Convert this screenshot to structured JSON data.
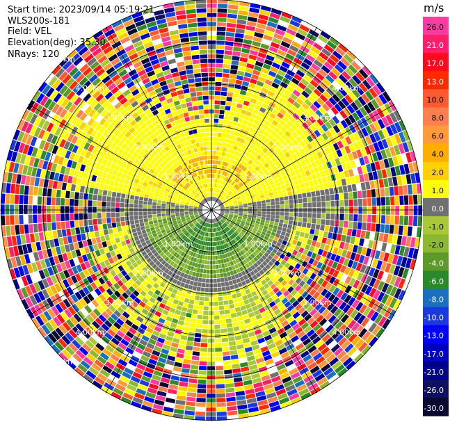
{
  "header": {
    "start_time": "Start time: 2023/09/14 05:19:21",
    "instrument": "WLS200s-181",
    "field": "Field: VEL",
    "elevation": "Elevation(deg): 35.30",
    "nrays": "NRays: 120"
  },
  "chart_data": {
    "type": "heatmap",
    "projection": "polar PPI",
    "field": "VEL",
    "nrays": 120,
    "elevation_deg": 35.3,
    "range_ring_labels": [
      "1.00km",
      "2.00km",
      "3.00km",
      "4.00km",
      "5.00km"
    ],
    "max_range_km": 6.5,
    "colorbar": {
      "units": "m/s",
      "tick_labels": [
        "26.0",
        "21.0",
        "17.0",
        "13.0",
        "10.0",
        "8.0",
        "6.0",
        "4.0",
        "2.0",
        "1.0",
        "0.0",
        "-1.0",
        "-2.0",
        "-4.0",
        "-6.0",
        "-8.0",
        "-10.0",
        "-13.0",
        "-17.0",
        "-21.0",
        "-26.0",
        "-30.0"
      ],
      "colors": [
        "#ff3aa0",
        "#ff1f6a",
        "#ff0a1e",
        "#ff2a00",
        "#ff5a30",
        "#ff7f50",
        "#ff9a3a",
        "#ffad00",
        "#ffd000",
        "#ffff00",
        "#707070",
        "#a8c838",
        "#8ab830",
        "#5e9a2a",
        "#2a8a2a",
        "#1a6fc0",
        "#1a3ae0",
        "#0000ff",
        "#0000c0",
        "#00008a",
        "#101060",
        "#0a0a30"
      ]
    }
  }
}
